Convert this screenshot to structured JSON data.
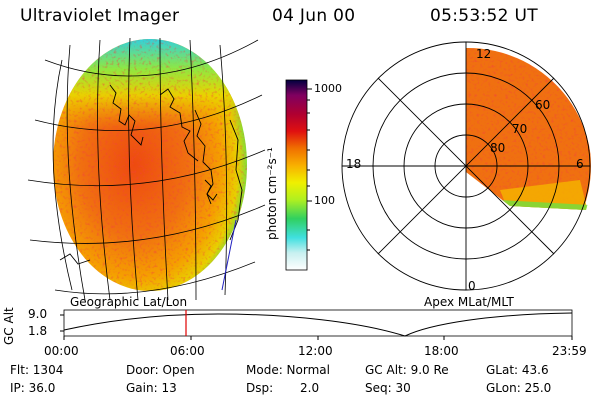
{
  "header": {
    "title": "Ultraviolet Imager",
    "date": "04 Jun 00",
    "time": "05:53:52 UT"
  },
  "left_panel": {
    "caption": "Geographic Lat/Lon"
  },
  "colorbar": {
    "unit_label": "photon cm⁻²s⁻¹",
    "ticks": [
      "1000",
      "100"
    ],
    "scale": "log",
    "colors": [
      "#ffffff",
      "#c8f0f0",
      "#40e0e0",
      "#30d060",
      "#b0f020",
      "#f0f000",
      "#f8b000",
      "#f07000",
      "#e01010",
      "#b00030",
      "#800060",
      "#000040"
    ]
  },
  "right_panel": {
    "caption": "Apex MLat/MLT",
    "mlt_labels": {
      "top": "12",
      "left": "18",
      "right": "6",
      "bottom": "0"
    },
    "lat_labels": [
      "60",
      "70",
      "80"
    ]
  },
  "altitude_plot": {
    "ylabel": "GC Alt",
    "yticks": [
      "9.0",
      "1.8"
    ],
    "xticks": [
      "00:00",
      "06:00",
      "12:00",
      "18:00",
      "23:59"
    ],
    "current_time_marker": "05:53:52",
    "marker_color": "#e00000"
  },
  "info": {
    "flt": "Flt: 1304",
    "ip": "IP: 36.0",
    "door": "Door: Open",
    "gain": "Gain: 13",
    "mode": "Mode: Normal",
    "dsp_label": "Dsp:",
    "dsp_value": "2.0",
    "gc_alt": "GC Alt: 9.0 Re",
    "seq": "Seq: 30",
    "glat": "GLat:  43.6",
    "glon": "GLon:  25.0"
  }
}
